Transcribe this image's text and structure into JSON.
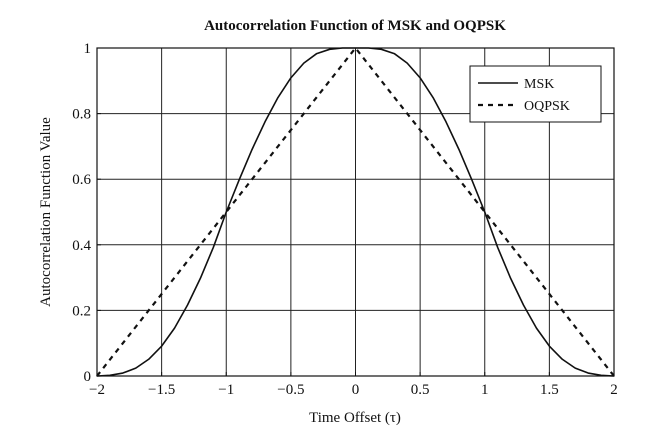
{
  "chart_data": {
    "type": "line",
    "title": "Autocorrelation Function of MSK and OQPSK",
    "xlabel": "Time Offset (τ)",
    "ylabel": "Autocorrelation Function Value",
    "xlim": [
      -2,
      2
    ],
    "ylim": [
      0,
      1
    ],
    "xticks": [
      -2,
      -1.5,
      -1,
      -0.5,
      0,
      0.5,
      1,
      1.5,
      2
    ],
    "xtick_labels": [
      "−2",
      "−1.5",
      "−1",
      "−0.5",
      "0",
      "0.5",
      "1",
      "1.5",
      "2"
    ],
    "yticks": [
      0,
      0.2,
      0.4,
      0.6,
      0.8,
      1
    ],
    "ytick_labels": [
      "0",
      "0.2",
      "0.4",
      "0.6",
      "0.8",
      "1"
    ],
    "grid": true,
    "legend_position": "top-right",
    "series": [
      {
        "name": "MSK",
        "style": "solid",
        "x": [
          -2,
          -1.9,
          -1.8,
          -1.7,
          -1.6,
          -1.5,
          -1.4,
          -1.3,
          -1.2,
          -1.1,
          -1.0,
          -0.9,
          -0.8,
          -0.7,
          -0.6,
          -0.5,
          -0.4,
          -0.3,
          -0.2,
          -0.1,
          0,
          0.1,
          0.2,
          0.3,
          0.4,
          0.5,
          0.6,
          0.7,
          0.8,
          0.9,
          1.0,
          1.1,
          1.2,
          1.3,
          1.4,
          1.5,
          1.6,
          1.7,
          1.8,
          1.9,
          2
        ],
        "y": [
          0.0,
          0.002,
          0.009,
          0.024,
          0.051,
          0.091,
          0.146,
          0.216,
          0.298,
          0.392,
          0.5,
          0.598,
          0.691,
          0.775,
          0.849,
          0.909,
          0.954,
          0.983,
          0.996,
          1.0,
          1.0,
          1.0,
          0.996,
          0.983,
          0.954,
          0.909,
          0.849,
          0.775,
          0.691,
          0.598,
          0.5,
          0.392,
          0.298,
          0.216,
          0.146,
          0.091,
          0.051,
          0.024,
          0.009,
          0.002,
          0.0
        ]
      },
      {
        "name": "OQPSK",
        "style": "dashed",
        "x": [
          -2,
          0,
          2
        ],
        "y": [
          0,
          1,
          0
        ]
      }
    ]
  },
  "colors": {
    "line": "#111111",
    "grid": "#222222",
    "background": "#ffffff"
  }
}
